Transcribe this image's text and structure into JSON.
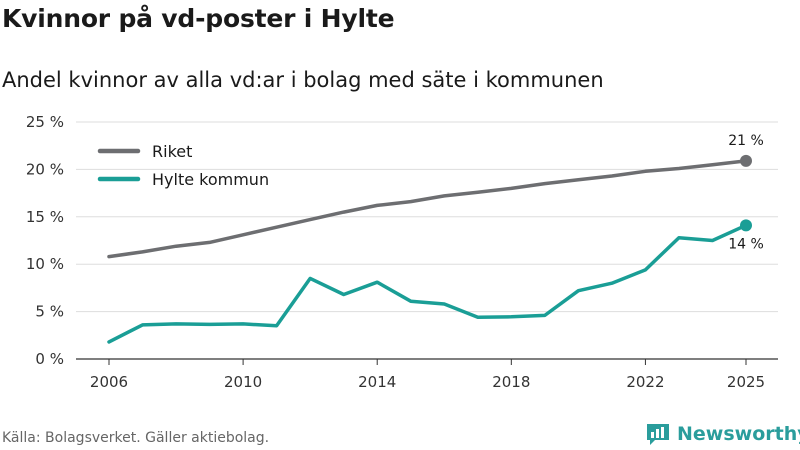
{
  "title": "Kvinnor på vd-poster i Hylte",
  "subtitle": "Andel kvinnor av alla vd:ar i bolag med säte i kommunen",
  "source": "Källa: Bolagsverket. Gäller aktiebolag.",
  "brand": "Newsworthy",
  "chart_data": {
    "type": "line",
    "title": "Kvinnor på vd-poster i Hylte",
    "xlabel": "",
    "ylabel": "",
    "ylim": [
      0,
      25
    ],
    "xlim": [
      2006,
      2025
    ],
    "yticks": [
      0,
      5,
      10,
      15,
      20,
      25
    ],
    "ytick_labels": [
      "0 %",
      "5 %",
      "10 %",
      "15 %",
      "20 %",
      "25 %"
    ],
    "xticks": [
      2006,
      2010,
      2014,
      2018,
      2022,
      2025
    ],
    "xtick_labels": [
      "2006",
      "2010",
      "2014",
      "2018",
      "2022",
      "2025"
    ],
    "legend": "top-left",
    "x": [
      2006,
      2007,
      2008,
      2009,
      2010,
      2011,
      2012,
      2013,
      2014,
      2015,
      2016,
      2017,
      2018,
      2019,
      2020,
      2021,
      2022,
      2023,
      2024,
      2025
    ],
    "series": [
      {
        "name": "Riket",
        "color": "#6d6e71",
        "values": [
          10.8,
          11.3,
          11.9,
          12.3,
          13.1,
          13.9,
          14.7,
          15.5,
          16.2,
          16.6,
          17.2,
          17.6,
          18.0,
          18.5,
          18.9,
          19.3,
          19.8,
          20.1,
          20.5,
          20.9
        ],
        "end_label": "21 %"
      },
      {
        "name": "Hylte kommun",
        "color": "#1a9e96",
        "values": [
          1.8,
          3.6,
          3.7,
          3.65,
          3.7,
          3.5,
          8.5,
          6.8,
          8.1,
          6.1,
          5.8,
          4.4,
          4.45,
          4.6,
          7.2,
          8.0,
          9.4,
          12.8,
          12.5,
          14.1
        ],
        "end_label": "14 %"
      }
    ]
  }
}
